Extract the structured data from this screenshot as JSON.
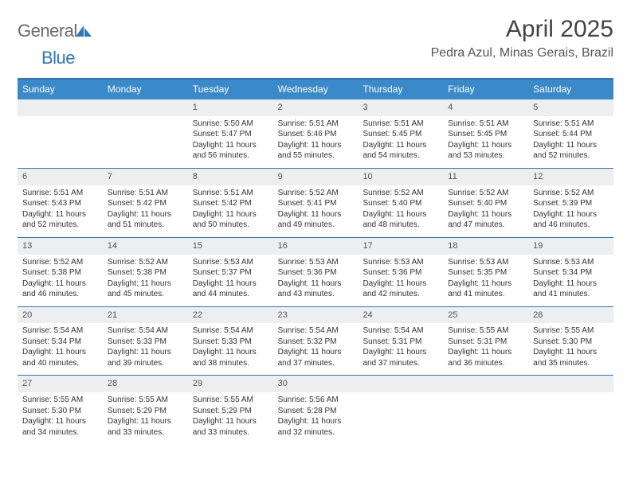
{
  "brand": {
    "name_gray": "General",
    "name_blue": "Blue"
  },
  "header": {
    "title": "April 2025",
    "location": "Pedra Azul, Minas Gerais, Brazil"
  },
  "colors": {
    "accent": "#3a89c9",
    "accent_dark": "#2b77bd",
    "date_bg": "#eceef0",
    "text": "#333333",
    "title_text": "#444444",
    "logo_gray": "#6a6a6a"
  },
  "dayHeaders": [
    "Sunday",
    "Monday",
    "Tuesday",
    "Wednesday",
    "Thursday",
    "Friday",
    "Saturday"
  ],
  "labels": {
    "sunrise_prefix": "Sunrise: ",
    "sunset_prefix": "Sunset: ",
    "daylight_prefix": "Daylight: ",
    "and_mid": " and ",
    "minutes_suffix": " minutes."
  },
  "startOffset": 2,
  "days": [
    {
      "n": 1,
      "sunrise": "5:50 AM",
      "sunset": "5:47 PM",
      "dl_h": "11 hours",
      "dl_m": "56"
    },
    {
      "n": 2,
      "sunrise": "5:51 AM",
      "sunset": "5:46 PM",
      "dl_h": "11 hours",
      "dl_m": "55"
    },
    {
      "n": 3,
      "sunrise": "5:51 AM",
      "sunset": "5:45 PM",
      "dl_h": "11 hours",
      "dl_m": "54"
    },
    {
      "n": 4,
      "sunrise": "5:51 AM",
      "sunset": "5:45 PM",
      "dl_h": "11 hours",
      "dl_m": "53"
    },
    {
      "n": 5,
      "sunrise": "5:51 AM",
      "sunset": "5:44 PM",
      "dl_h": "11 hours",
      "dl_m": "52"
    },
    {
      "n": 6,
      "sunrise": "5:51 AM",
      "sunset": "5:43 PM",
      "dl_h": "11 hours",
      "dl_m": "52"
    },
    {
      "n": 7,
      "sunrise": "5:51 AM",
      "sunset": "5:42 PM",
      "dl_h": "11 hours",
      "dl_m": "51"
    },
    {
      "n": 8,
      "sunrise": "5:51 AM",
      "sunset": "5:42 PM",
      "dl_h": "11 hours",
      "dl_m": "50"
    },
    {
      "n": 9,
      "sunrise": "5:52 AM",
      "sunset": "5:41 PM",
      "dl_h": "11 hours",
      "dl_m": "49"
    },
    {
      "n": 10,
      "sunrise": "5:52 AM",
      "sunset": "5:40 PM",
      "dl_h": "11 hours",
      "dl_m": "48"
    },
    {
      "n": 11,
      "sunrise": "5:52 AM",
      "sunset": "5:40 PM",
      "dl_h": "11 hours",
      "dl_m": "47"
    },
    {
      "n": 12,
      "sunrise": "5:52 AM",
      "sunset": "5:39 PM",
      "dl_h": "11 hours",
      "dl_m": "46"
    },
    {
      "n": 13,
      "sunrise": "5:52 AM",
      "sunset": "5:38 PM",
      "dl_h": "11 hours",
      "dl_m": "46"
    },
    {
      "n": 14,
      "sunrise": "5:52 AM",
      "sunset": "5:38 PM",
      "dl_h": "11 hours",
      "dl_m": "45"
    },
    {
      "n": 15,
      "sunrise": "5:53 AM",
      "sunset": "5:37 PM",
      "dl_h": "11 hours",
      "dl_m": "44"
    },
    {
      "n": 16,
      "sunrise": "5:53 AM",
      "sunset": "5:36 PM",
      "dl_h": "11 hours",
      "dl_m": "43"
    },
    {
      "n": 17,
      "sunrise": "5:53 AM",
      "sunset": "5:36 PM",
      "dl_h": "11 hours",
      "dl_m": "42"
    },
    {
      "n": 18,
      "sunrise": "5:53 AM",
      "sunset": "5:35 PM",
      "dl_h": "11 hours",
      "dl_m": "41"
    },
    {
      "n": 19,
      "sunrise": "5:53 AM",
      "sunset": "5:34 PM",
      "dl_h": "11 hours",
      "dl_m": "41"
    },
    {
      "n": 20,
      "sunrise": "5:54 AM",
      "sunset": "5:34 PM",
      "dl_h": "11 hours",
      "dl_m": "40"
    },
    {
      "n": 21,
      "sunrise": "5:54 AM",
      "sunset": "5:33 PM",
      "dl_h": "11 hours",
      "dl_m": "39"
    },
    {
      "n": 22,
      "sunrise": "5:54 AM",
      "sunset": "5:33 PM",
      "dl_h": "11 hours",
      "dl_m": "38"
    },
    {
      "n": 23,
      "sunrise": "5:54 AM",
      "sunset": "5:32 PM",
      "dl_h": "11 hours",
      "dl_m": "37"
    },
    {
      "n": 24,
      "sunrise": "5:54 AM",
      "sunset": "5:31 PM",
      "dl_h": "11 hours",
      "dl_m": "37"
    },
    {
      "n": 25,
      "sunrise": "5:55 AM",
      "sunset": "5:31 PM",
      "dl_h": "11 hours",
      "dl_m": "36"
    },
    {
      "n": 26,
      "sunrise": "5:55 AM",
      "sunset": "5:30 PM",
      "dl_h": "11 hours",
      "dl_m": "35"
    },
    {
      "n": 27,
      "sunrise": "5:55 AM",
      "sunset": "5:30 PM",
      "dl_h": "11 hours",
      "dl_m": "34"
    },
    {
      "n": 28,
      "sunrise": "5:55 AM",
      "sunset": "5:29 PM",
      "dl_h": "11 hours",
      "dl_m": "33"
    },
    {
      "n": 29,
      "sunrise": "5:55 AM",
      "sunset": "5:29 PM",
      "dl_h": "11 hours",
      "dl_m": "33"
    },
    {
      "n": 30,
      "sunrise": "5:56 AM",
      "sunset": "5:28 PM",
      "dl_h": "11 hours",
      "dl_m": "32"
    }
  ]
}
